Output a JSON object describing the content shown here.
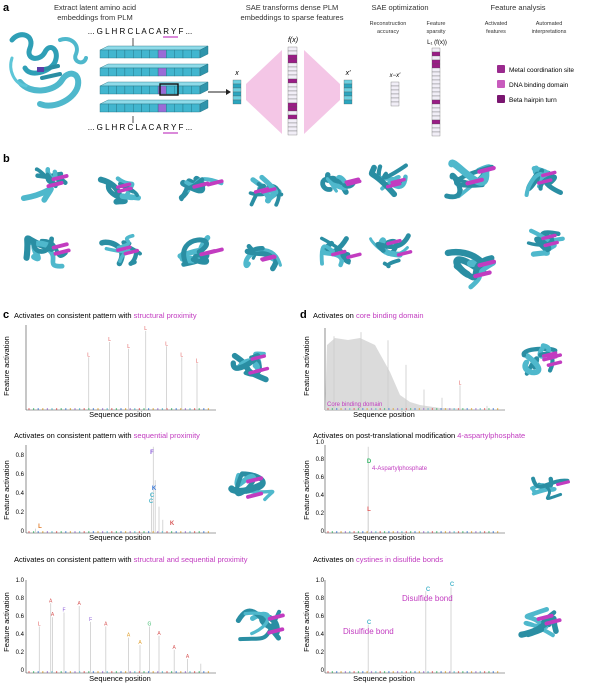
{
  "panels": {
    "a": {
      "letter": "a",
      "col1_title": [
        "Extract latent amino acid",
        "embeddings from PLM"
      ],
      "sequence": "... G L H R C L A C A R Y F ...",
      "col2_title": [
        "SAE transforms dense PLM",
        "embeddings to sparse features"
      ],
      "fx": "f(x)",
      "x_in": "x",
      "x_out": "x′",
      "col3_title": "SAE optimization",
      "recon_label": [
        "Reconstruction",
        "accuracy"
      ],
      "recon_var": "x−x′",
      "sparsity_label": [
        "Feature",
        "sparsity"
      ],
      "l1_label": "L₁ (f(x))",
      "col4_title": "Feature analysis",
      "activated_label": [
        "Activated",
        "features"
      ],
      "automated_label": [
        "Automated",
        "interpretations"
      ],
      "legend": [
        {
          "label": "Metal coordination site",
          "color": "#9a2a8e"
        },
        {
          "label": "DNA binding domain",
          "color": "#c85bbd"
        },
        {
          "label": "Beta hairpin turn",
          "color": "#7a1670"
        }
      ]
    },
    "b": {
      "letter": "b"
    },
    "c": {
      "letter": "c",
      "plots": [
        {
          "prefix": "Activates on consistent pattern with ",
          "highlight": "structural proximity"
        },
        {
          "prefix": "Activates on consistent pattern with ",
          "highlight": "sequential proximity",
          "letters": [
            "F",
            "K",
            "C",
            "C",
            "L",
            "K"
          ]
        },
        {
          "prefix": "Activates on consistent pattern with ",
          "highlight": "structural and sequential proximity"
        }
      ]
    },
    "d": {
      "letter": "d",
      "plots": [
        {
          "prefix": "Activates on ",
          "highlight": "core binding domain",
          "inner": "Core binding domain"
        },
        {
          "prefix": "Activates on post-translational modification ",
          "highlight": "4-aspartylphosphate",
          "inner": "4-Aspartylphosphate",
          "letters": [
            "D",
            "L"
          ]
        },
        {
          "prefix": "Activates on ",
          "highlight": "cystines in disulfide bonds",
          "inner1": "Disulfide bond",
          "inner2": "Disulfide bond",
          "letters": [
            "C",
            "C",
            "C"
          ]
        }
      ]
    }
  },
  "axes": {
    "xlabel": "Sequence position",
    "ylabel": "Feature activation",
    "ticks": [
      "0",
      "0.2",
      "0.4",
      "0.6",
      "0.8",
      "1.0"
    ]
  },
  "colors": {
    "highlight": "#c23cc0",
    "protein": "#4fb8cc",
    "protein_dark": "#2a8ea3",
    "spike": "#cccccc"
  }
}
